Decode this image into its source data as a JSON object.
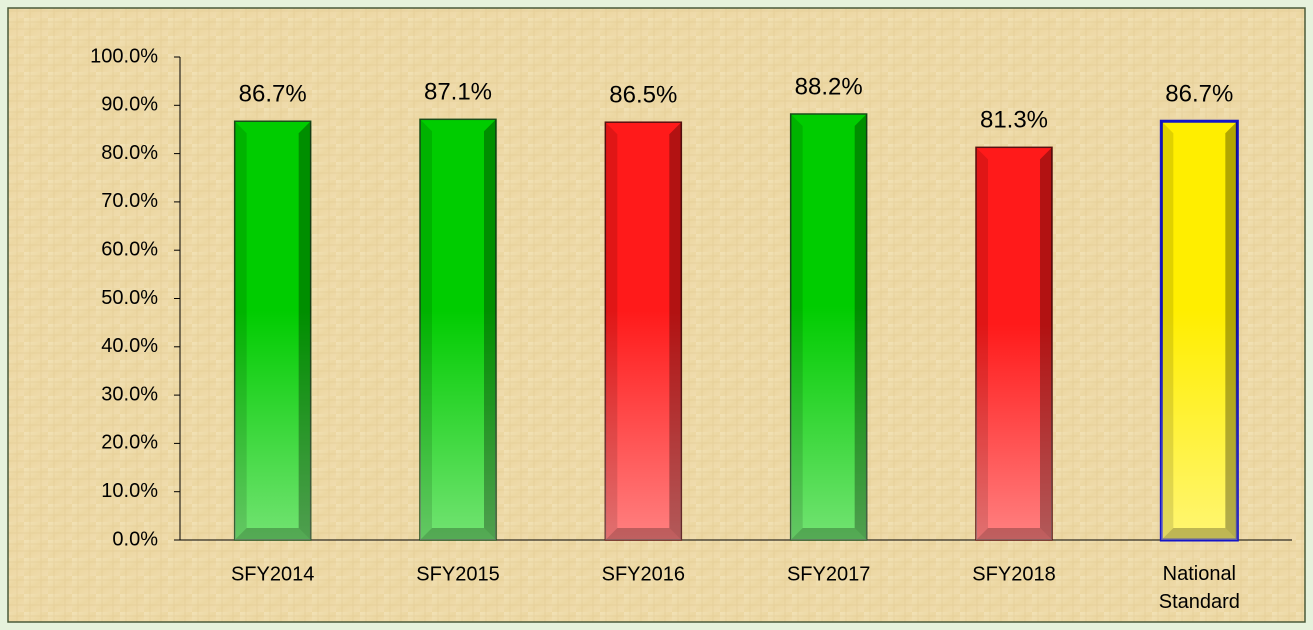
{
  "chart_data": {
    "type": "bar",
    "categories": [
      "SFY2014",
      "SFY2015",
      "SFY2016",
      "SFY2017",
      "SFY2018",
      "National Standard"
    ],
    "values": [
      86.7,
      87.1,
      86.5,
      88.2,
      81.3,
      86.7
    ],
    "value_labels": [
      "86.7%",
      "87.1%",
      "86.5%",
      "88.2%",
      "81.3%",
      "86.7%"
    ],
    "colors": [
      "#00cc00",
      "#00cc00",
      "#ff1a1a",
      "#00cc00",
      "#ff1a1a",
      "#ffee00"
    ],
    "edge_colors": [
      "#1a4d1a",
      "#1a4d1a",
      "#5a1010",
      "#1a4d1a",
      "#5a1010",
      "#1414c8"
    ],
    "ylim": [
      0,
      100
    ],
    "yticks": [
      {
        "value": 0,
        "label": "0.0%"
      },
      {
        "value": 10,
        "label": "10.0%"
      },
      {
        "value": 20,
        "label": "20.0%"
      },
      {
        "value": 30,
        "label": "30.0%"
      },
      {
        "value": 40,
        "label": "40.0%"
      },
      {
        "value": 50,
        "label": "50.0%"
      },
      {
        "value": 60,
        "label": "60.0%"
      },
      {
        "value": 70,
        "label": "70.0%"
      },
      {
        "value": 80,
        "label": "80.0%"
      },
      {
        "value": 90,
        "label": "90.0%"
      },
      {
        "value": 100,
        "label": "100.0%"
      }
    ]
  }
}
